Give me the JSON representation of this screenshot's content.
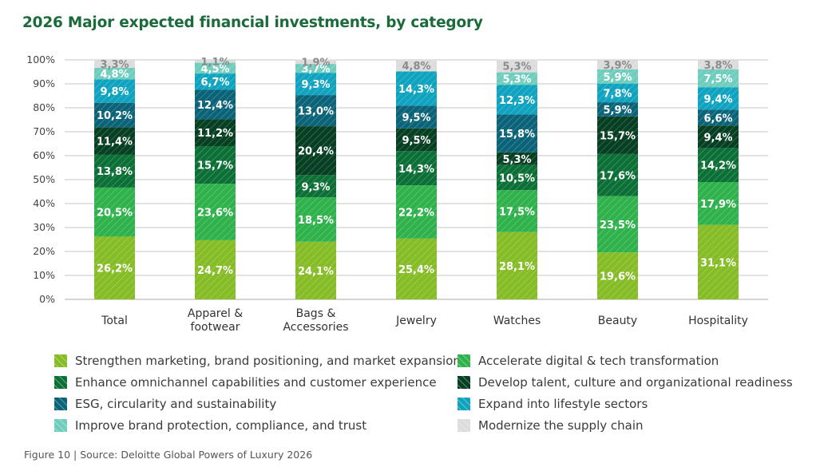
{
  "title": "2026 Major expected financial investments, by category",
  "source": "Figure 10 | Source: Deloitte Global Powers of Luxury 2026",
  "chart_data": {
    "type": "bar",
    "stacked": true,
    "title": "2026 Major expected financial investments, by category",
    "xlabel": "",
    "ylabel": "",
    "ylim": [
      0,
      100
    ],
    "yticks": [
      "0%",
      "10%",
      "20%",
      "30%",
      "40%",
      "50%",
      "60%",
      "70%",
      "80%",
      "90%",
      "100%"
    ],
    "grid": true,
    "legend_position": "bottom",
    "categories": [
      [
        "Total"
      ],
      [
        "Apparel &",
        "footwear"
      ],
      [
        "Bags &",
        "Accessories"
      ],
      [
        "Jewelry"
      ],
      [
        "Watches"
      ],
      [
        "Beauty"
      ],
      [
        "Hospitality"
      ]
    ],
    "series": [
      {
        "name": "Strengthen marketing, brand positioning, and market expansion",
        "color": "#86bc25",
        "label_color": "#ffffff",
        "values": [
          26.2,
          24.7,
          24.1,
          25.4,
          28.1,
          19.6,
          31.1
        ],
        "labels": [
          "26,2%",
          "24,7%",
          "24,1%",
          "25,4%",
          "28,1%",
          "19,6%",
          "31,1%"
        ]
      },
      {
        "name": "Accelerate digital & tech transformation",
        "color": "#2fb24c",
        "label_color": "#ffffff",
        "values": [
          20.5,
          23.6,
          18.5,
          22.2,
          17.5,
          23.5,
          17.9
        ],
        "labels": [
          "20,5%",
          "23,6%",
          "18,5%",
          "22,2%",
          "17,5%",
          "23,5%",
          "17,9%"
        ]
      },
      {
        "name": "Enhance omnichannel capabilities and customer experience",
        "color": "#0c7036",
        "label_color": "#ffffff",
        "values": [
          13.8,
          15.7,
          9.3,
          14.3,
          10.5,
          17.6,
          14.2
        ],
        "labels": [
          "13,8%",
          "15,7%",
          "9,3%",
          "14,3%",
          "10,5%",
          "17,6%",
          "14,2%"
        ]
      },
      {
        "name": "Develop talent, culture and organizational readiness",
        "color": "#063f22",
        "label_color": "#ffffff",
        "values": [
          11.4,
          11.2,
          20.4,
          9.5,
          5.3,
          15.7,
          9.4
        ],
        "labels": [
          "11,4%",
          "11,2%",
          "20,4%",
          "9,5%",
          "5,3%",
          "15,7%",
          "9,4%"
        ]
      },
      {
        "name": "ESG, circularity and sustainability",
        "color": "#0b6378",
        "label_color": "#ffffff",
        "values": [
          10.2,
          12.4,
          13.0,
          9.5,
          15.8,
          5.9,
          6.6
        ],
        "labels": [
          "10,2%",
          "12,4%",
          "13,0%",
          "9,5%",
          "15,8%",
          "5,9%",
          "6,6%"
        ]
      },
      {
        "name": "Expand into lifestyle sectors",
        "color": "#0fa3c0",
        "label_color": "#ffffff",
        "values": [
          9.8,
          6.7,
          9.3,
          14.3,
          12.3,
          7.8,
          9.4
        ],
        "labels": [
          "9,8%",
          "6,7%",
          "9,3%",
          "14,3%",
          "12,3%",
          "7,8%",
          "9,4%"
        ]
      },
      {
        "name": "Improve brand protection, compliance, and trust",
        "color": "#6fcdbd",
        "label_color": "#ffffff",
        "values": [
          4.8,
          4.5,
          3.7,
          0,
          5.3,
          5.9,
          7.5
        ],
        "labels": [
          "4,8%",
          "4,5%",
          "3,7%",
          "",
          "5,3%",
          "5,9%",
          "7,5%"
        ]
      },
      {
        "name": "Modernize the supply chain",
        "color": "#dcdcdc",
        "label_color": "#8c8c8c",
        "values": [
          3.3,
          1.1,
          1.9,
          4.8,
          5.3,
          3.9,
          3.8
        ],
        "labels": [
          "3,3%",
          "1,1%",
          "1,9%",
          "4,8%",
          "5,3%",
          "3,9%",
          "3,8%"
        ]
      }
    ]
  },
  "legend": {
    "items": [
      {
        "label": "Strengthen marketing, brand positioning, and market expansion",
        "color": "#86bc25"
      },
      {
        "label": "Accelerate digital & tech transformation",
        "color": "#2fb24c"
      },
      {
        "label": "Enhance omnichannel capabilities and customer experience",
        "color": "#0c7036"
      },
      {
        "label": "Develop talent, culture and organizational readiness",
        "color": "#063f22"
      },
      {
        "label": "ESG, circularity and sustainability",
        "color": "#0b6378"
      },
      {
        "label": "Expand into lifestyle sectors",
        "color": "#0fa3c0"
      },
      {
        "label": "Improve brand protection, compliance, and trust",
        "color": "#6fcdbd"
      },
      {
        "label": "Modernize the supply chain",
        "color": "#dcdcdc"
      }
    ]
  }
}
